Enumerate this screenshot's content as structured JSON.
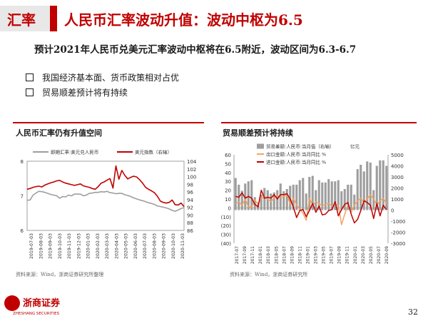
{
  "header": {
    "tag": "汇率",
    "title": "人民币汇率波动升值：波动中枢为6.5"
  },
  "subtitle": "预计2021年人民币兑美元汇率波动中枢将在6.5附近，波动区间为6.3-6.7",
  "bullets": [
    "我国经济基本面、货币政策相对占优",
    "贸易顺差预计将有持续"
  ],
  "left_panel": {
    "title": "人民币汇率仍有升值空间",
    "source": "资料来源：Wind，浙商证券研究所整理"
  },
  "right_panel": {
    "title": "贸易顺差预计将持续",
    "source": "资料来源：Wind，浙商证券研究所"
  },
  "footer": {
    "logo": "浙商证券",
    "logo_sub": "ZHESHANG SECURITIES",
    "page": "32"
  },
  "colors": {
    "accent": "#c00000",
    "grey_series": "#9e9e9e",
    "orange_series": "#f4a460"
  },
  "chart_data": [
    {
      "type": "line",
      "title": "人民币汇率仍有升值空间",
      "x_ticks": [
        "2019-07-03",
        "2019-08-03",
        "2019-09-03",
        "2019-10-03",
        "2019-11-03",
        "2019-12-03",
        "2020-01-03",
        "2020-02-03",
        "2020-03-03",
        "2020-04-03",
        "2020-05-03",
        "2020-06-03",
        "2020-07-03",
        "2020-08-03",
        "2020-09-03",
        "2020-10-03",
        "2020-11-03"
      ],
      "y_left": {
        "lim": [
          6,
          8
        ],
        "ticks": [
          6,
          7,
          8
        ]
      },
      "y_right": {
        "lim": [
          86,
          104
        ],
        "ticks": [
          86,
          88,
          90,
          92,
          94,
          96,
          98,
          100,
          102,
          104
        ]
      },
      "series": [
        {
          "name": "即期汇率:美元兑人民币",
          "axis": "left",
          "color": "#9e9e9e",
          "values": [
            6.87,
            6.88,
            7.02,
            7.08,
            7.13,
            7.12,
            7.1,
            7.07,
            7.04,
            7.02,
            7.0,
            6.93,
            6.98,
            6.97,
            7.02,
            7.0,
            7.05,
            7.05,
            7.05,
            7.0,
            7.02,
            7.07,
            7.08,
            7.1,
            7.1,
            7.12,
            7.11,
            7.13,
            7.09,
            7.08,
            7.06,
            7.07,
            7.07,
            7.03,
            7.01,
            6.98,
            6.94,
            6.91,
            6.88,
            6.86,
            6.83,
            6.8,
            6.78,
            6.75,
            6.71,
            6.69,
            6.67,
            6.65,
            6.62,
            6.58,
            6.55,
            6.59,
            6.63,
            6.66
          ]
        },
        {
          "name": "美元指数（右轴）",
          "axis": "right",
          "color": "#c00000",
          "values": [
            96.7,
            96.9,
            97.2,
            97.4,
            97.5,
            97.3,
            97.8,
            98.1,
            98.4,
            98.6,
            98.9,
            99.0,
            98.6,
            98.3,
            98.1,
            97.9,
            97.7,
            97.9,
            98.1,
            97.6,
            97.4,
            97.2,
            96.9,
            96.7,
            97.4,
            98.3,
            98.6,
            99.1,
            99.5,
            97.0,
            102.8,
            99.3,
            101.6,
            100.3,
            99.4,
            99.8,
            100.1,
            99.9,
            99.2,
            98.3,
            97.2,
            96.7,
            96.3,
            95.8,
            94.9,
            93.6,
            93.3,
            93.1,
            93.3,
            93.9,
            92.7,
            92.6,
            93.1,
            92.2
          ]
        }
      ]
    },
    {
      "type": "bar",
      "title": "贸易顺差预计将持续",
      "x_ticks": [
        "2017-07",
        "2017-09",
        "2017-11",
        "2018-01",
        "2018-03",
        "2018-05",
        "2018-07",
        "2018-09",
        "2018-11",
        "2019-01",
        "2019-03",
        "2019-05",
        "2019-07",
        "2019-09",
        "2019-11",
        "2020-01",
        "2020-03",
        "2020-05",
        "2020-07",
        "2020-09"
      ],
      "y_left": {
        "lim": [
          -40,
          60
        ],
        "ticks": [
          "(40)",
          "(30)",
          "(20)",
          "(10)",
          "0",
          "10",
          "20",
          "30",
          "40",
          "50",
          "60"
        ]
      },
      "y_right": {
        "lim": [
          -3000,
          5000
        ],
        "ticks": [
          "-3000",
          "-2000",
          "-1000",
          "0",
          "1000",
          "2000",
          "3000",
          "4000",
          "5000"
        ],
        "unit": "亿元"
      },
      "series": [
        {
          "name": "贸易差额:人民币:当月值（右轴）",
          "axis": "right",
          "type": "bar",
          "color": "#9e9e9e",
          "values": [
            2900,
            2300,
            1750,
            2400,
            2600,
            2700,
            1170,
            700,
            1400,
            2000,
            1800,
            1500,
            1600,
            1800,
            2400,
            1700,
            1900,
            2200,
            2300,
            2300,
            2700,
            2900,
            1500,
            3000,
            3100,
            1800,
            2700,
            2500,
            2500,
            2800,
            2600,
            2600,
            2700,
            1700,
            1900,
            2300,
            2300,
            1400,
            3700,
            4100,
            3500,
            4400,
            4300,
            1800,
            4000,
            4500,
            4500,
            4000
          ]
        },
        {
          "name": "出口金额:人民币:当月同比 %",
          "axis": "left",
          "type": "line",
          "color": "#f4a460",
          "values": [
            5,
            7,
            3,
            10,
            1,
            1,
            9,
            4,
            11,
            12,
            10,
            7,
            11,
            14,
            12,
            13,
            15,
            4,
            11,
            3,
            -1,
            -6,
            -14,
            11,
            3,
            7,
            5,
            2,
            4,
            5,
            2,
            4,
            3,
            -19,
            -7,
            4,
            -5,
            3,
            8,
            11,
            6,
            10,
            15,
            10,
            3,
            8,
            11,
            5
          ]
        },
        {
          "name": "进口金额:人民币:当月同比 %",
          "axis": "left",
          "type": "line",
          "color": "#c00000",
          "values": [
            13,
            12,
            17,
            11,
            13,
            11,
            4,
            1,
            20,
            11,
            12,
            11,
            15,
            10,
            15,
            15,
            16,
            10,
            1,
            -11,
            -3,
            -2,
            -10,
            -3,
            5,
            -5,
            2,
            -8,
            -7,
            -3,
            -2,
            7,
            -9,
            -2,
            4,
            6,
            -7,
            -17,
            -13,
            -3,
            8,
            6,
            3,
            -12,
            5,
            -9,
            3,
            -2
          ]
        }
      ]
    }
  ]
}
